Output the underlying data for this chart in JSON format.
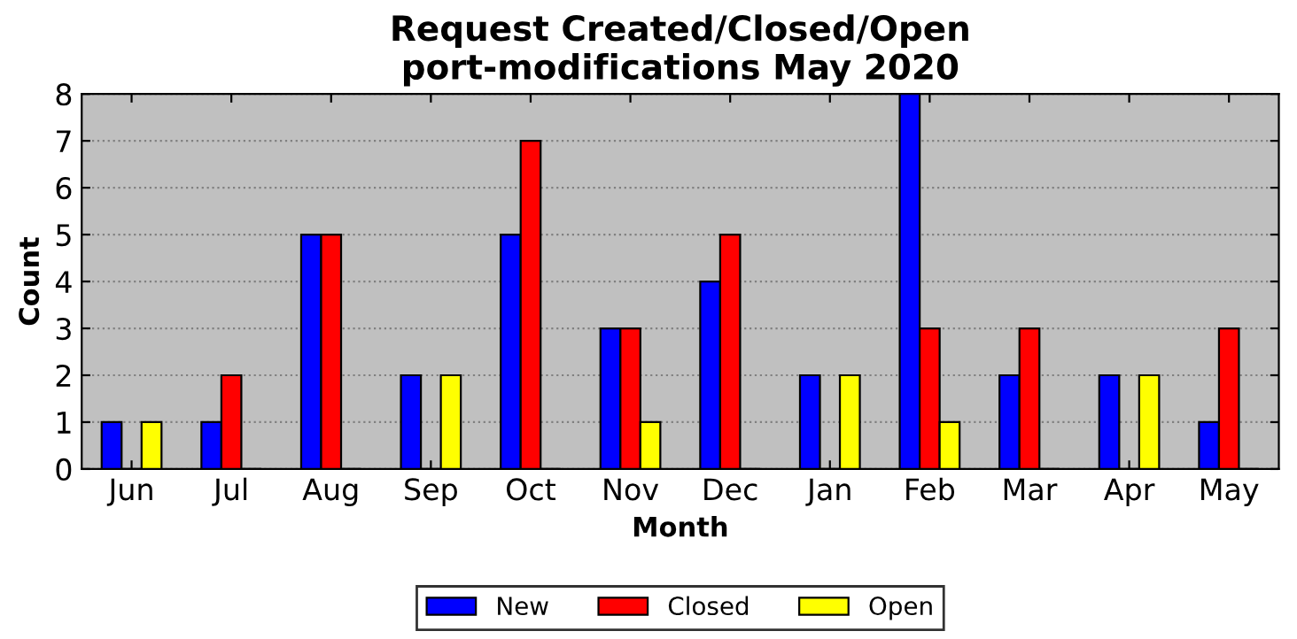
{
  "chart_data": {
    "type": "bar",
    "title": "Request Created/Closed/Open\nport-modifications May 2020",
    "xlabel": "Month",
    "ylabel": "Count",
    "categories": [
      "Jun",
      "Jul",
      "Aug",
      "Sep",
      "Oct",
      "Nov",
      "Dec",
      "Jan",
      "Feb",
      "Mar",
      "Apr",
      "May"
    ],
    "series": [
      {
        "name": "New",
        "color": "#0000ff",
        "values": [
          1,
          1,
          5,
          2,
          5,
          3,
          4,
          2,
          8,
          2,
          2,
          1
        ]
      },
      {
        "name": "Closed",
        "color": "#ff0000",
        "values": [
          0,
          2,
          5,
          0,
          7,
          3,
          5,
          0,
          3,
          3,
          0,
          3
        ]
      },
      {
        "name": "Open",
        "color": "#ffff00",
        "values": [
          1,
          0,
          0,
          2,
          0,
          1,
          0,
          2,
          1,
          0,
          2,
          0
        ]
      }
    ],
    "ylim": [
      0,
      8
    ],
    "yticks": [
      0,
      1,
      2,
      3,
      4,
      5,
      6,
      7,
      8
    ],
    "grid": "y",
    "legend": "bottom"
  }
}
